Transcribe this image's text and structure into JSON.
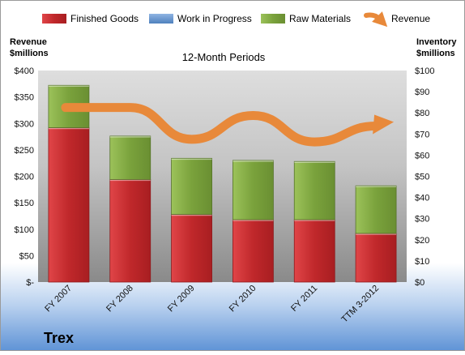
{
  "company": "Trex",
  "chart_data": {
    "type": "bar",
    "stacked": true,
    "subtitle": "12-Month Periods",
    "categories": [
      "FY 2007",
      "FY 2008",
      "FY 2009",
      "FY 2010",
      "FY 2011",
      "TTM 3-2012"
    ],
    "series": [
      {
        "name": "Finished Goods",
        "axis": "right",
        "color": "#c0282b",
        "values": [
          73,
          48.5,
          32,
          29.5,
          29.5,
          23
        ]
      },
      {
        "name": "Work in Progress",
        "axis": "right",
        "color": "#4f81bd",
        "values": [
          0,
          0,
          0,
          0,
          0,
          0
        ]
      },
      {
        "name": "Raw Materials",
        "axis": "right",
        "color": "#7aa23c",
        "values": [
          20,
          20.5,
          26.5,
          28,
          27.5,
          22.5
        ]
      },
      {
        "name": "Revenue",
        "axis": "left",
        "type": "line",
        "color": "#e8893a",
        "values": [
          330,
          330,
          270,
          315,
          265,
          295
        ]
      }
    ],
    "y_left": {
      "label": [
        "Revenue",
        "$millions"
      ],
      "range": [
        0,
        400
      ],
      "ticks": [
        "$-",
        "$50",
        "$100",
        "$150",
        "$200",
        "$250",
        "$300",
        "$350",
        "$400"
      ]
    },
    "y_right": {
      "label": [
        "Inventory",
        "$millions"
      ],
      "range": [
        0,
        100
      ],
      "ticks": [
        "$0",
        "$10",
        "$20",
        "$30",
        "$40",
        "$50",
        "$60",
        "$70",
        "$80",
        "$90",
        "$100"
      ]
    },
    "legend_position": "top",
    "grid": false,
    "colors": {
      "plot_top": "#dcdcdc",
      "plot_bottom": "#8a8a8a",
      "background_bottom": "#5f93d6"
    }
  }
}
